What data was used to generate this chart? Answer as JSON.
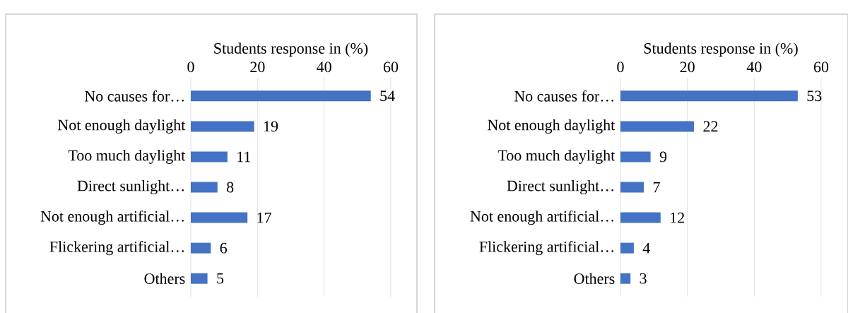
{
  "chart_data": [
    {
      "type": "bar",
      "orientation": "horizontal",
      "xlabel": "Students response in (%)",
      "categories": [
        "No causes for…",
        "Not enough daylight",
        "Too much daylight",
        "Direct sunlight…",
        "Not enough artificial…",
        "Flickering artificial…",
        "Others"
      ],
      "values": [
        54,
        19,
        11,
        8,
        17,
        6,
        5
      ],
      "color": "#4472c4",
      "xlim": [
        0,
        60
      ],
      "xticks": [
        0,
        20,
        40,
        60
      ],
      "grid": "x",
      "data_labels": true
    },
    {
      "type": "bar",
      "orientation": "horizontal",
      "xlabel": "Students response in (%)",
      "categories": [
        "No causes for…",
        "Not enough daylight",
        "Too much daylight",
        "Direct sunlight…",
        "Not enough artificial…",
        "Flickering artificial…",
        "Others"
      ],
      "values": [
        53,
        22,
        9,
        7,
        12,
        4,
        3
      ],
      "color": "#4472c4",
      "xlim": [
        0,
        60
      ],
      "xticks": [
        0,
        20,
        40,
        60
      ],
      "grid": "x",
      "data_labels": true
    }
  ]
}
